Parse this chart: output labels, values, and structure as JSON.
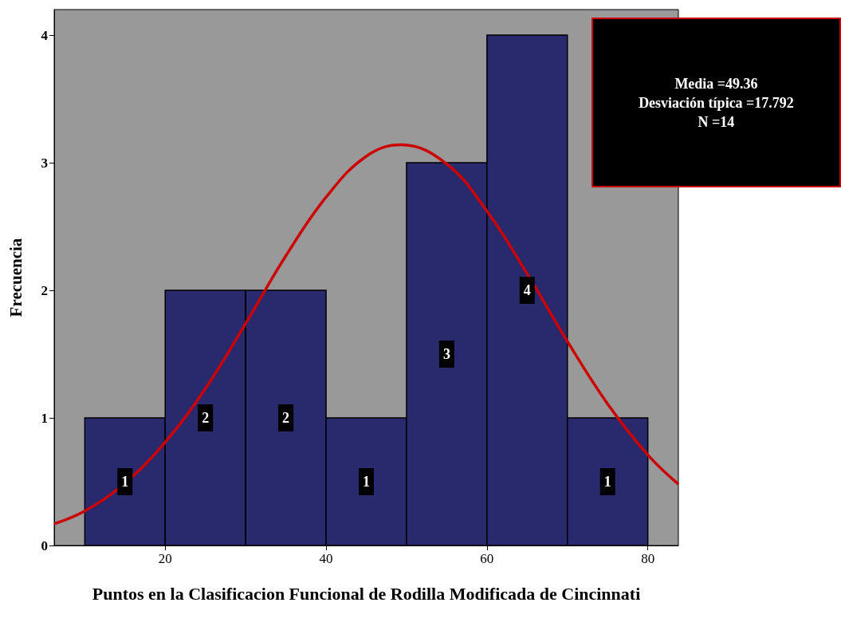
{
  "chart_data": {
    "type": "histogram",
    "xlabel": "Puntos en la Clasificacion Funcional de Rodilla Modificada de Cincinnati",
    "ylabel": "Frecuencia",
    "bins": [
      10,
      20,
      30,
      40,
      50,
      60,
      70,
      80
    ],
    "values": [
      1,
      2,
      2,
      1,
      3,
      4,
      1
    ],
    "color": "#29296e",
    "value_labels": [
      "1",
      "2",
      "2",
      "1",
      "3",
      "4",
      "1"
    ],
    "series": [
      {
        "type": "line",
        "color": "#cc0000",
        "x": [
          6.2,
          10,
          15,
          20,
          25,
          30,
          35,
          40,
          45,
          49.36,
          55,
          60,
          65,
          70,
          75,
          80,
          83.8
        ],
        "values": [
          0.17,
          0.27,
          0.49,
          0.81,
          1.23,
          1.74,
          2.27,
          2.73,
          3.05,
          3.14,
          2.99,
          2.62,
          2.13,
          1.6,
          1.11,
          0.71,
          0.48
        ]
      }
    ],
    "annotations": [
      "Media =49.36",
      "Desviación típica =17.792",
      "N =14"
    ],
    "xlim": [
      6.2,
      83.8
    ],
    "xticks": [
      20,
      40,
      60,
      80
    ],
    "ylim": [
      0,
      4.2
    ],
    "yticks": [
      0,
      1,
      2,
      3,
      4
    ],
    "grid": false
  }
}
